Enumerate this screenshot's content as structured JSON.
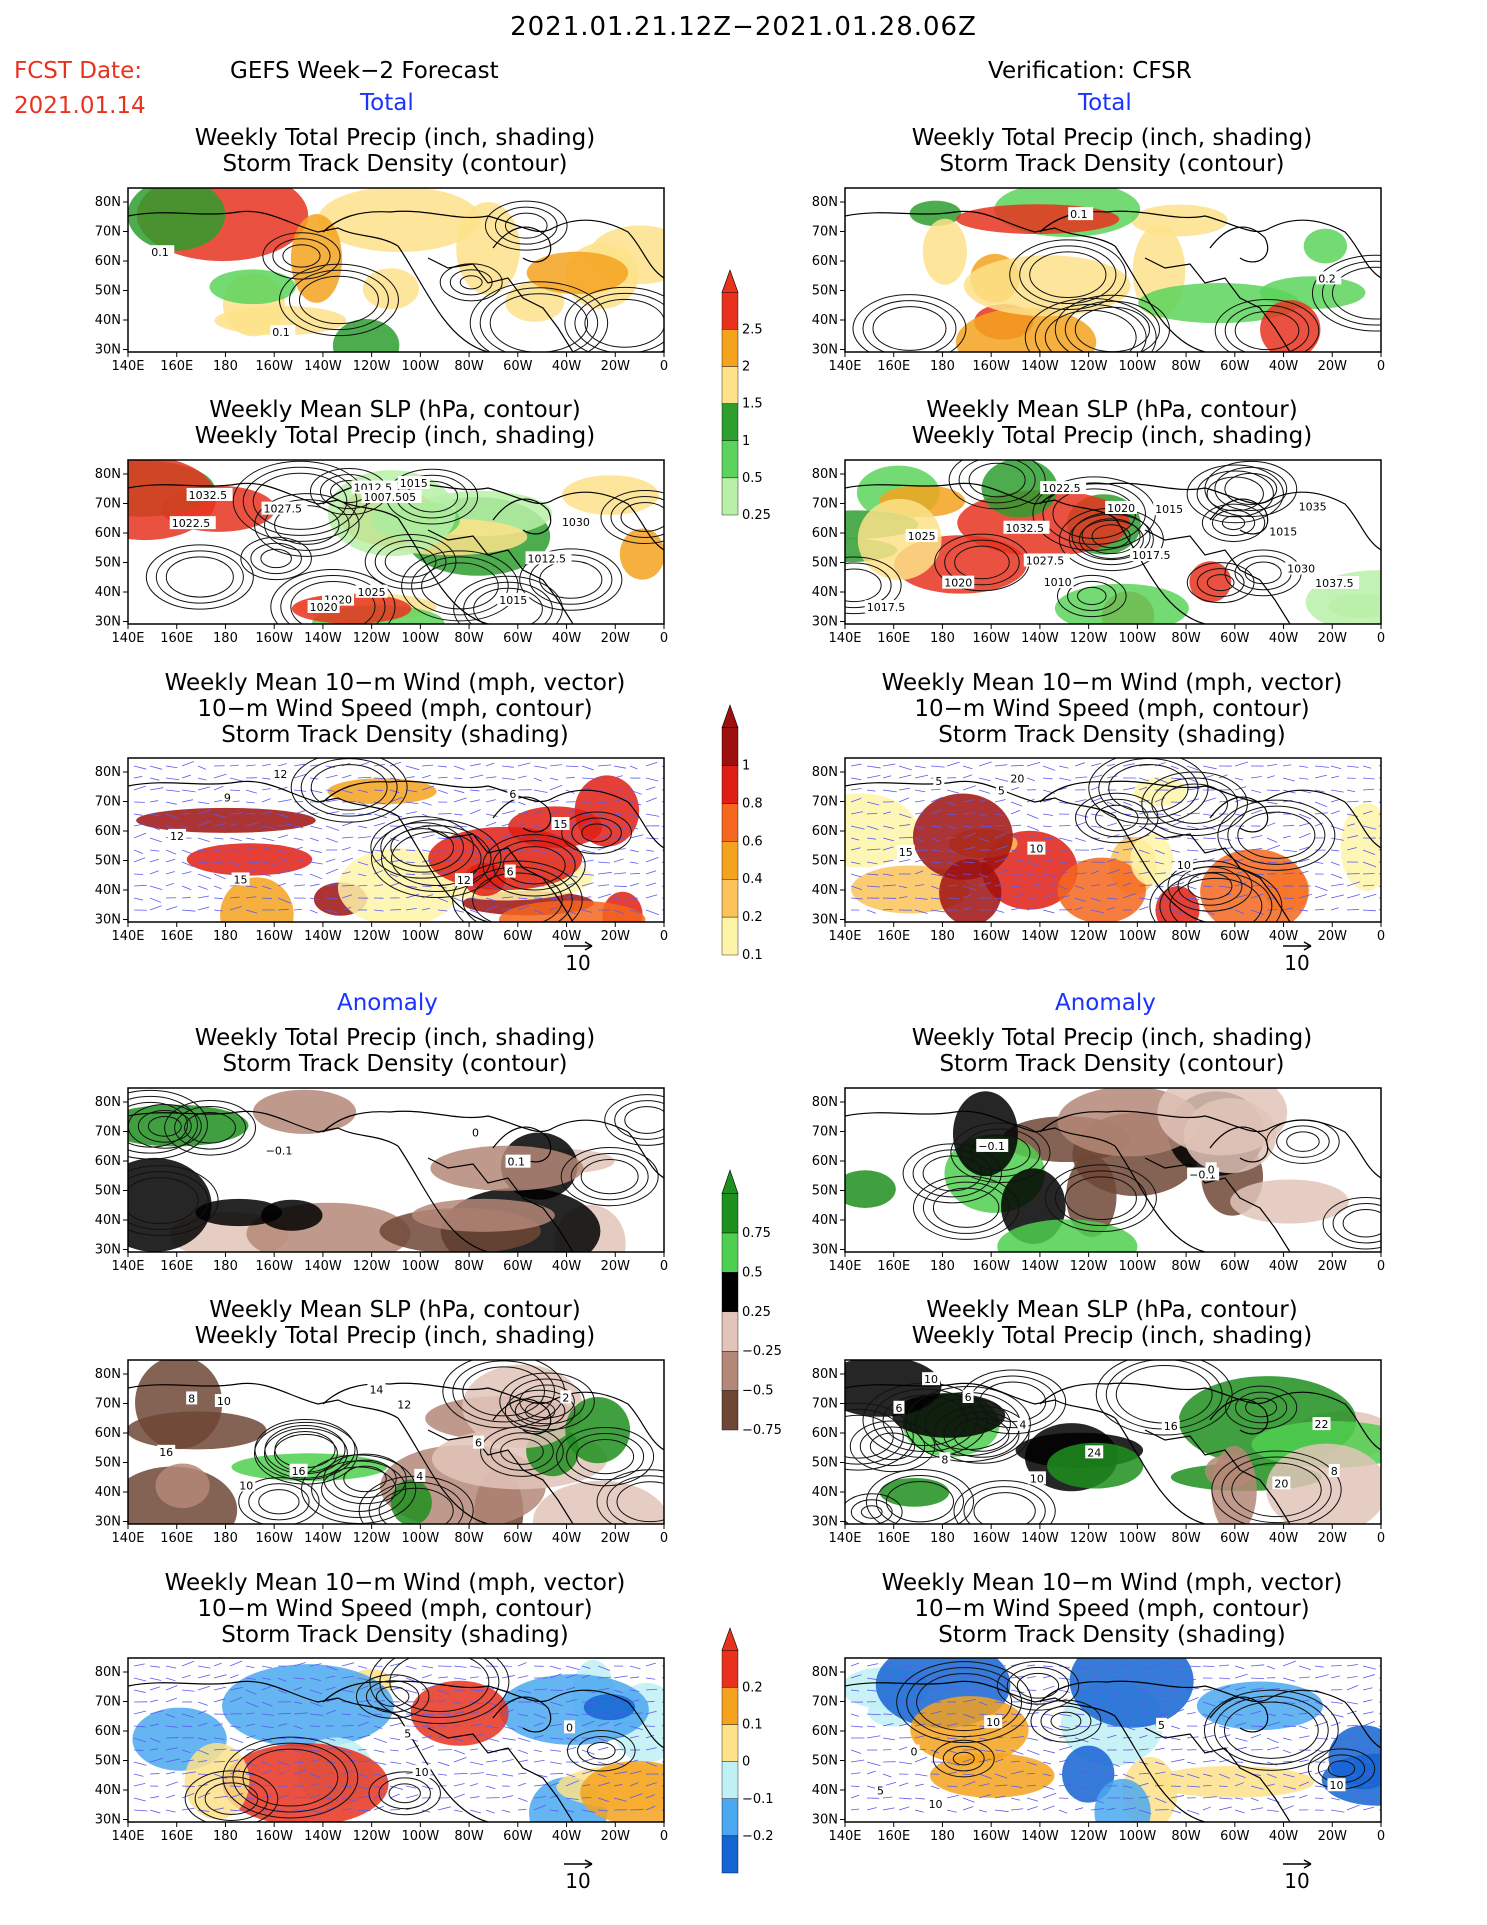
{
  "header": {
    "date_range": "2021.01.21.12Z−2021.01.28.06Z",
    "fcst_label": "FCST Date:",
    "fcst_date": "2021.01.14",
    "left_title": "GEFS Week−2 Forecast",
    "right_title": "Verification: CFSR"
  },
  "sections": {
    "total": "Total",
    "anomaly": "Anomaly"
  },
  "panel_titles": {
    "precip_storm": [
      "Weekly Total Precip (inch, shading)",
      "Storm Track Density (contour)"
    ],
    "slp_precip": [
      "Weekly Mean SLP (hPa, contour)",
      "Weekly Total Precip (inch, shading)"
    ],
    "wind_storm": [
      "Weekly Mean 10−m Wind (mph, vector)",
      "10−m Wind Speed (mph, contour)",
      "Storm Track Density (shading)"
    ]
  },
  "axis": {
    "lat_labels": [
      "80N",
      "70N",
      "60N",
      "50N",
      "40N",
      "30N"
    ],
    "lon_labels": [
      "140E",
      "160E",
      "180",
      "160W",
      "140W",
      "120W",
      "100W",
      "80W",
      "60W",
      "40W",
      "20W",
      "0"
    ]
  },
  "vector_ref": "10",
  "colorbars": {
    "precip_total": {
      "labels": [
        "2.5",
        "2",
        "1.5",
        "1",
        "0.5",
        "0.25"
      ],
      "colors": [
        "#e8321e",
        "#f5a21e",
        "#fde28a",
        "#2e9e2e",
        "#5cd35c",
        "#b8f0a8"
      ]
    },
    "storm_total": {
      "labels": [
        "1",
        "0.8",
        "0.6",
        "0.4",
        "0.2",
        "0.1"
      ],
      "colors": [
        "#9e1010",
        "#e01e14",
        "#f5661e",
        "#f5a21e",
        "#fcc35a",
        "#fef4a8"
      ]
    },
    "precip_anom": {
      "labels": [
        "0.75",
        "0.5",
        "0.25",
        "−0.25",
        "−0.5",
        "−0.75"
      ],
      "colors": [
        "#1f8f1f",
        "#4fcf4f",
        "#a8ecа8",
        "#e2c4b8",
        "#b48878",
        "#6e4636"
      ]
    },
    "storm_anom": {
      "labels": [
        "0.2",
        "0.1",
        "0",
        "−0.1",
        "−0.2"
      ],
      "colors": [
        "#e8321e",
        "#f5a21e",
        "#fde28a",
        "#bff0f5",
        "#4aa8f0",
        "#1464d2"
      ]
    }
  },
  "panels": [
    {
      "id": "L1",
      "kind": "precip_storm",
      "shade": "precip",
      "labels": [
        "0.1",
        "0.1"
      ]
    },
    {
      "id": "R1",
      "kind": "precip_storm",
      "shade": "precip",
      "labels": [
        "0.1",
        "0.2"
      ]
    },
    {
      "id": "L2",
      "kind": "slp_precip",
      "shade": "precip",
      "labels": [
        "1032.5",
        "1020",
        "1015",
        "1025",
        "1012.5",
        "1030",
        "1027.5",
        "1022.5",
        "1020",
        "1012.5",
        "1015",
        "1007.505"
      ]
    },
    {
      "id": "R2",
      "kind": "slp_precip",
      "shade": "precip",
      "labels": [
        "1037.5",
        "1035",
        "1032.5",
        "1030",
        "1015",
        "1010",
        "1020",
        "1017.5",
        "1027.5",
        "1025",
        "1022.5",
        "1020",
        "1017.5",
        "1015"
      ]
    },
    {
      "id": "L3",
      "kind": "wind_storm",
      "shade": "storm",
      "labels": [
        "6",
        "12",
        "9",
        "15",
        "12",
        "6",
        "15",
        "12"
      ]
    },
    {
      "id": "R3",
      "kind": "wind_storm",
      "shade": "storm",
      "labels": [
        "10",
        "15",
        "5",
        "10",
        "20",
        "5"
      ]
    },
    {
      "id": "L4",
      "kind": "precip_storm",
      "shade": "panom",
      "labels": [
        "0",
        "−0.1",
        "0.1"
      ]
    },
    {
      "id": "R4",
      "kind": "precip_storm",
      "shade": "panom",
      "labels": [
        "−0.1",
        "0",
        "−0.1"
      ]
    },
    {
      "id": "L5",
      "kind": "slp_precip",
      "shade": "panom",
      "labels": [
        "16",
        "14",
        "16",
        "12",
        "4",
        "6",
        "10",
        "2",
        "8",
        "10"
      ]
    },
    {
      "id": "R5",
      "kind": "slp_precip",
      "shade": "panom",
      "labels": [
        "24",
        "16",
        "22",
        "10",
        "6",
        "8",
        "20",
        "8",
        "10",
        "6",
        "4"
      ]
    },
    {
      "id": "L6",
      "kind": "wind_storm",
      "shade": "sanom",
      "labels": [
        "0",
        "5",
        "10"
      ]
    },
    {
      "id": "R6",
      "kind": "wind_storm",
      "shade": "sanom",
      "labels": [
        "0",
        "10",
        "5",
        "10",
        "5",
        "10"
      ]
    }
  ]
}
